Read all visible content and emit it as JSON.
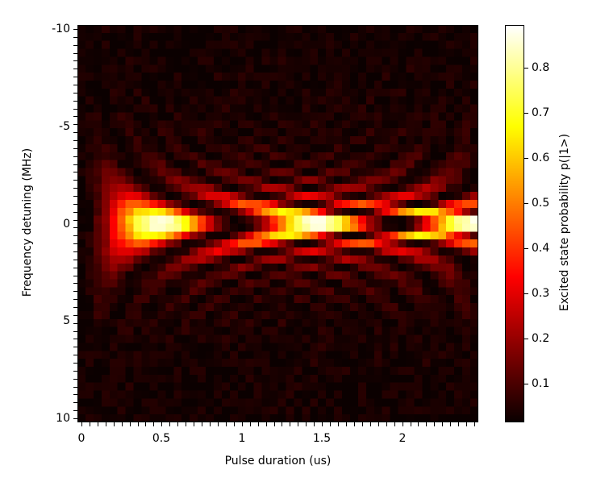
{
  "chart_data": {
    "type": "heatmap",
    "title": "",
    "xlabel": "Pulse duration (us)",
    "ylabel": "Frequency detuning (MHz)",
    "colorbar_label": "Excited state probability p(|1>)",
    "colormap": "hot",
    "x": {
      "start": 0.0,
      "step": 0.05,
      "count": 50,
      "range": [
        0,
        2.45
      ]
    },
    "y": {
      "start": -10.0,
      "step": 0.408,
      "count": 50,
      "range": [
        -10,
        10
      ],
      "inverted": true
    },
    "xticks": [
      {
        "value": 0,
        "label": "0"
      },
      {
        "value": 0.5,
        "label": "0.5"
      },
      {
        "value": 1,
        "label": "1"
      },
      {
        "value": 1.5,
        "label": "1.5"
      },
      {
        "value": 2,
        "label": "2"
      }
    ],
    "yticks": [
      {
        "value": -10,
        "label": "-10"
      },
      {
        "value": -5,
        "label": "-5"
      },
      {
        "value": 0,
        "label": "0"
      },
      {
        "value": 5,
        "label": "5"
      },
      {
        "value": 10,
        "label": "10"
      }
    ],
    "colorbar_ticks": [
      {
        "value": 0.1,
        "label": "0.1"
      },
      {
        "value": 0.2,
        "label": "0.2"
      },
      {
        "value": 0.3,
        "label": "0.3"
      },
      {
        "value": 0.4,
        "label": "0.4"
      },
      {
        "value": 0.5,
        "label": "0.5"
      },
      {
        "value": 0.6,
        "label": "0.6"
      },
      {
        "value": 0.7,
        "label": "0.7"
      },
      {
        "value": 0.8,
        "label": "0.8"
      }
    ],
    "clim": [
      0.014,
      0.895
    ],
    "model": {
      "description": "Rabi chevron: p = A * W^2/(W^2+D^2) * sin^2(pi*sqrt(W^2+D^2)*t) + baseline + noise",
      "rabi_frequency_mhz": 1.0,
      "amplitude": 0.88,
      "baseline": 0.02,
      "noise": 0.025
    },
    "features": [
      {
        "note": "Brightest lobe centered at detuning 0, t ~0.5 us, p ~0.89"
      },
      {
        "note": "Second bright lobe at detuning 0, t ~1.5 us"
      },
      {
        "note": "Third lobe starting near t ~2.4 us at right edge"
      },
      {
        "note": "Dark nodes on resonance near t ~1.0 us and ~2.0 us"
      },
      {
        "note": "Chevron fringes curve outward with increasing |detuning|"
      }
    ]
  }
}
